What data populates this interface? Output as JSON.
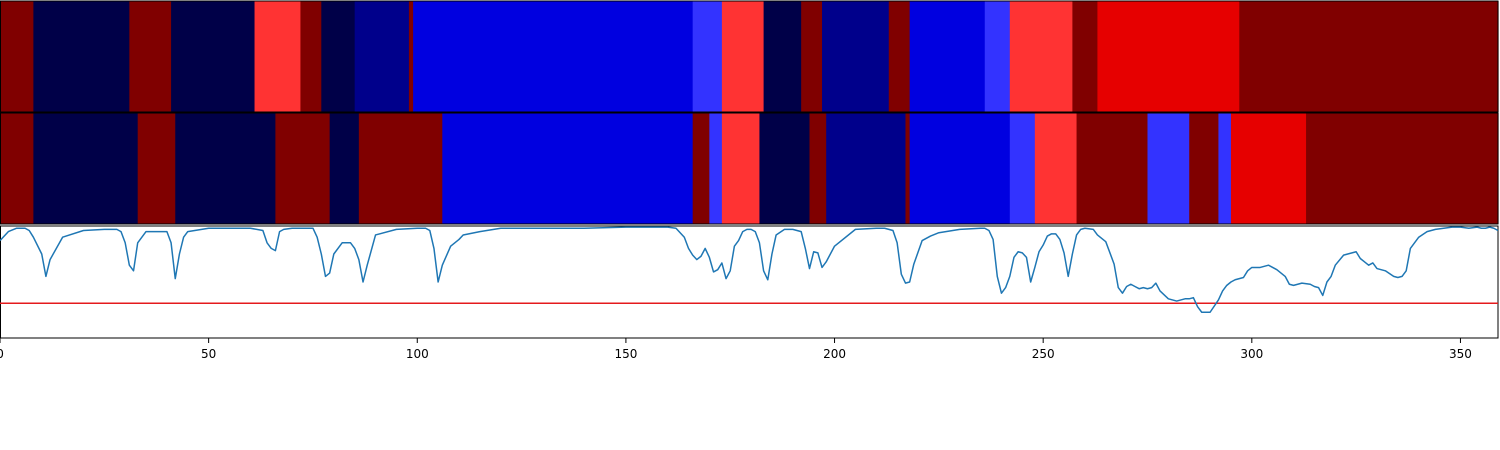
{
  "chart_data": {
    "type": "heatmap",
    "xlim": [
      0,
      359
    ],
    "x_ticks": [
      0,
      50,
      100,
      150,
      200,
      250,
      300,
      350
    ],
    "color_legend": {
      "c0": "#000048",
      "c1": "#00008b",
      "c2": "#0000e0",
      "c3": "#3333ff",
      "c4": "#ff3333",
      "c5": "#e60000",
      "c6": "#800000"
    },
    "segment_rows": [
      {
        "name": "row-1",
        "segments": [
          {
            "start": 0,
            "end": 8,
            "color": "c6"
          },
          {
            "start": 8,
            "end": 31,
            "color": "c0"
          },
          {
            "start": 31,
            "end": 41,
            "color": "c6"
          },
          {
            "start": 41,
            "end": 61,
            "color": "c0"
          },
          {
            "start": 61,
            "end": 72,
            "color": "c4"
          },
          {
            "start": 72,
            "end": 77,
            "color": "c6"
          },
          {
            "start": 77,
            "end": 85,
            "color": "c0"
          },
          {
            "start": 85,
            "end": 98,
            "color": "c1"
          },
          {
            "start": 98,
            "end": 99,
            "color": "c6"
          },
          {
            "start": 99,
            "end": 166,
            "color": "c2"
          },
          {
            "start": 166,
            "end": 173,
            "color": "c3"
          },
          {
            "start": 173,
            "end": 183,
            "color": "c4"
          },
          {
            "start": 183,
            "end": 192,
            "color": "c0"
          },
          {
            "start": 192,
            "end": 197,
            "color": "c6"
          },
          {
            "start": 197,
            "end": 213,
            "color": "c1"
          },
          {
            "start": 213,
            "end": 218,
            "color": "c6"
          },
          {
            "start": 218,
            "end": 236,
            "color": "c2"
          },
          {
            "start": 236,
            "end": 242,
            "color": "c3"
          },
          {
            "start": 242,
            "end": 257,
            "color": "c4"
          },
          {
            "start": 257,
            "end": 263,
            "color": "c6"
          },
          {
            "start": 263,
            "end": 297,
            "color": "c5"
          },
          {
            "start": 297,
            "end": 359,
            "color": "c6"
          }
        ]
      },
      {
        "name": "row-2",
        "segments": [
          {
            "start": 0,
            "end": 8,
            "color": "c6"
          },
          {
            "start": 8,
            "end": 33,
            "color": "c0"
          },
          {
            "start": 33,
            "end": 42,
            "color": "c6"
          },
          {
            "start": 42,
            "end": 66,
            "color": "c0"
          },
          {
            "start": 66,
            "end": 79,
            "color": "c6"
          },
          {
            "start": 79,
            "end": 86,
            "color": "c0"
          },
          {
            "start": 86,
            "end": 106,
            "color": "c6"
          },
          {
            "start": 106,
            "end": 166,
            "color": "c2"
          },
          {
            "start": 166,
            "end": 170,
            "color": "c6"
          },
          {
            "start": 170,
            "end": 173,
            "color": "c3"
          },
          {
            "start": 173,
            "end": 182,
            "color": "c4"
          },
          {
            "start": 182,
            "end": 194,
            "color": "c0"
          },
          {
            "start": 194,
            "end": 198,
            "color": "c6"
          },
          {
            "start": 198,
            "end": 217,
            "color": "c1"
          },
          {
            "start": 217,
            "end": 218,
            "color": "c6"
          },
          {
            "start": 218,
            "end": 242,
            "color": "c2"
          },
          {
            "start": 242,
            "end": 248,
            "color": "c3"
          },
          {
            "start": 248,
            "end": 258,
            "color": "c4"
          },
          {
            "start": 258,
            "end": 275,
            "color": "c6"
          },
          {
            "start": 275,
            "end": 285,
            "color": "c3"
          },
          {
            "start": 285,
            "end": 292,
            "color": "c6"
          },
          {
            "start": 292,
            "end": 295,
            "color": "c3"
          },
          {
            "start": 295,
            "end": 313,
            "color": "c5"
          },
          {
            "start": 313,
            "end": 359,
            "color": "c6"
          }
        ]
      }
    ],
    "line_panel": {
      "ylim": [
        0,
        1
      ],
      "line_color": "#1f77b4",
      "threshold": 0.31,
      "threshold_color": "#e41a1c",
      "x": [
        0,
        2,
        4,
        6,
        7,
        8,
        10,
        11,
        12,
        15,
        20,
        25,
        28,
        29,
        30,
        31,
        32,
        33,
        35,
        40,
        41,
        42,
        43,
        44,
        45,
        50,
        55,
        60,
        63,
        64,
        65,
        66,
        67,
        68,
        70,
        75,
        76,
        77,
        78,
        79,
        80,
        82,
        84,
        85,
        86,
        87,
        88,
        90,
        95,
        100,
        102,
        103,
        104,
        105,
        106,
        108,
        110,
        111,
        115,
        120,
        130,
        140,
        150,
        160,
        162,
        164,
        165,
        166,
        167,
        168,
        169,
        170,
        171,
        172,
        173,
        174,
        175,
        176,
        177,
        178,
        179,
        180,
        181,
        182,
        183,
        184,
        185,
        186,
        188,
        190,
        192,
        193,
        194,
        195,
        196,
        197,
        198,
        200,
        205,
        210,
        212,
        214,
        215,
        216,
        217,
        218,
        219,
        221,
        223,
        225,
        230,
        235,
        236,
        237,
        238,
        239,
        240,
        241,
        242,
        243,
        244,
        245,
        246,
        247,
        248,
        249,
        250,
        251,
        252,
        253,
        254,
        255,
        256,
        257,
        258,
        259,
        260,
        262,
        263,
        265,
        267,
        268,
        269,
        270,
        271,
        272,
        273,
        274,
        275,
        276,
        277,
        278,
        280,
        282,
        284,
        285,
        286,
        287,
        288,
        290,
        292,
        293,
        294,
        295,
        296,
        297,
        298,
        299,
        300,
        302,
        304,
        306,
        308,
        309,
        310,
        312,
        314,
        315,
        316,
        317,
        318,
        319,
        320,
        322,
        324,
        325,
        326,
        327,
        328,
        329,
        330,
        332,
        334,
        335,
        336,
        337,
        338,
        340,
        342,
        344,
        346,
        348,
        350,
        352,
        354,
        355,
        356,
        357,
        358,
        359
      ],
      "y": [
        0.87,
        0.95,
        0.98,
        0.98,
        0.96,
        0.9,
        0.75,
        0.55,
        0.7,
        0.9,
        0.96,
        0.97,
        0.97,
        0.95,
        0.85,
        0.65,
        0.6,
        0.85,
        0.95,
        0.95,
        0.85,
        0.53,
        0.75,
        0.9,
        0.95,
        0.98,
        0.98,
        0.98,
        0.96,
        0.85,
        0.8,
        0.78,
        0.95,
        0.97,
        0.98,
        0.98,
        0.9,
        0.75,
        0.55,
        0.58,
        0.75,
        0.85,
        0.85,
        0.8,
        0.7,
        0.5,
        0.65,
        0.92,
        0.97,
        0.98,
        0.98,
        0.96,
        0.8,
        0.5,
        0.65,
        0.82,
        0.88,
        0.92,
        0.95,
        0.98,
        0.98,
        0.98,
        0.99,
        0.99,
        0.98,
        0.9,
        0.8,
        0.74,
        0.7,
        0.73,
        0.8,
        0.72,
        0.59,
        0.61,
        0.67,
        0.53,
        0.6,
        0.82,
        0.87,
        0.95,
        0.97,
        0.97,
        0.95,
        0.85,
        0.6,
        0.52,
        0.75,
        0.92,
        0.97,
        0.97,
        0.95,
        0.8,
        0.62,
        0.77,
        0.76,
        0.63,
        0.68,
        0.82,
        0.97,
        0.98,
        0.98,
        0.96,
        0.85,
        0.57,
        0.49,
        0.5,
        0.66,
        0.87,
        0.91,
        0.94,
        0.97,
        0.98,
        0.98,
        0.96,
        0.88,
        0.55,
        0.4,
        0.45,
        0.55,
        0.72,
        0.77,
        0.76,
        0.72,
        0.5,
        0.63,
        0.77,
        0.83,
        0.91,
        0.93,
        0.93,
        0.88,
        0.76,
        0.55,
        0.75,
        0.92,
        0.97,
        0.98,
        0.97,
        0.92,
        0.86,
        0.66,
        0.45,
        0.4,
        0.46,
        0.48,
        0.46,
        0.44,
        0.45,
        0.44,
        0.45,
        0.49,
        0.42,
        0.35,
        0.33,
        0.35,
        0.35,
        0.36,
        0.28,
        0.23,
        0.23,
        0.34,
        0.42,
        0.47,
        0.5,
        0.52,
        0.53,
        0.54,
        0.6,
        0.63,
        0.63,
        0.65,
        0.61,
        0.55,
        0.48,
        0.47,
        0.49,
        0.48,
        0.46,
        0.45,
        0.38,
        0.5,
        0.55,
        0.65,
        0.74,
        0.76,
        0.77,
        0.71,
        0.68,
        0.65,
        0.67,
        0.62,
        0.6,
        0.55,
        0.54,
        0.55,
        0.6,
        0.8,
        0.9,
        0.95,
        0.97,
        0.98,
        0.99,
        0.99,
        0.98,
        0.99,
        0.98,
        0.98,
        0.99,
        0.98,
        0.96,
        0.95
      ]
    }
  }
}
